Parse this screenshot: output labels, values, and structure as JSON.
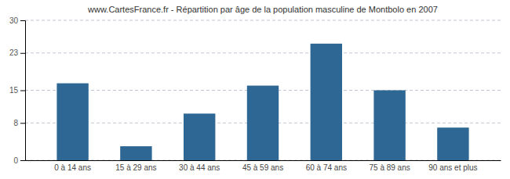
{
  "chart_data": {
    "type": "bar",
    "title": "www.CartesFrance.fr - Répartition par âge de la population masculine de Montbolo en 2007",
    "categories": [
      "0 à 14 ans",
      "15 à 29 ans",
      "30 à 44 ans",
      "45 à 59 ans",
      "60 à 74 ans",
      "75 à 89 ans",
      "90 ans et plus"
    ],
    "values": [
      16.5,
      3,
      10,
      16,
      25,
      15,
      7
    ],
    "color": "#2e6794",
    "ylim": [
      0,
      30
    ],
    "yticks": [
      0,
      8,
      15,
      23,
      30
    ],
    "grid": true
  }
}
